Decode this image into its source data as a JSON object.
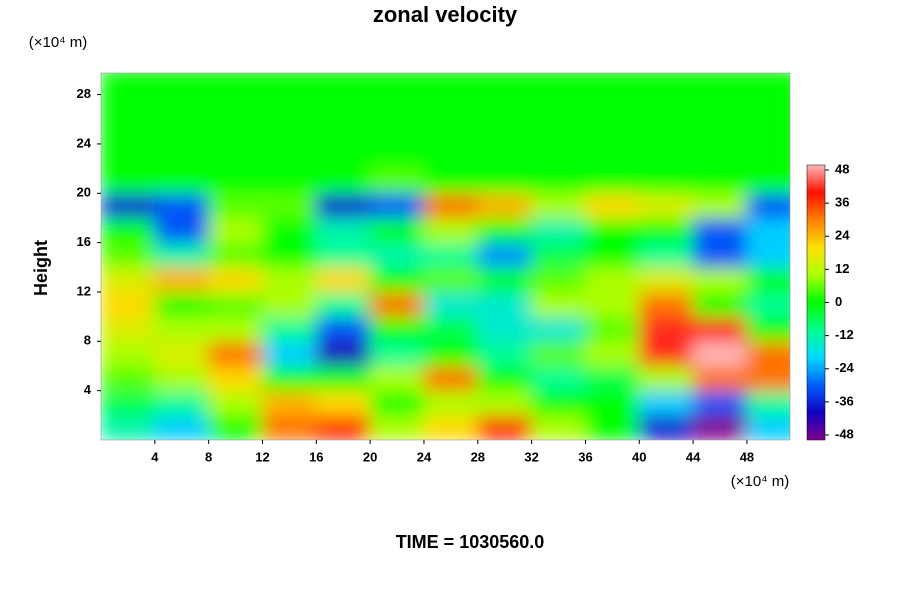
{
  "chart_data": {
    "type": "heatmap",
    "title": "zonal velocity",
    "x_unit": "(×10⁴ m)",
    "y_unit": "(×10⁴ m)",
    "ylabel": "Height",
    "footer": "TIME = 1030560.0",
    "x": [
      2,
      6,
      10,
      14,
      18,
      22,
      26,
      30,
      34,
      38,
      42,
      46,
      50
    ],
    "y": [
      1,
      3,
      5,
      7,
      9,
      11,
      13,
      15,
      17,
      19,
      21,
      23,
      25,
      27,
      29
    ],
    "z": [
      [
        -12,
        -20,
        0,
        30,
        36,
        10,
        20,
        36,
        10,
        0,
        -36,
        -48,
        -20
      ],
      [
        -5,
        -10,
        10,
        24,
        20,
        0,
        10,
        10,
        0,
        0,
        -20,
        -30,
        -10
      ],
      [
        5,
        10,
        20,
        0,
        0,
        10,
        30,
        0,
        -10,
        -5,
        10,
        30,
        30
      ],
      [
        10,
        15,
        30,
        -20,
        -40,
        -10,
        0,
        -10,
        5,
        10,
        40,
        48,
        30
      ],
      [
        15,
        10,
        10,
        -10,
        -30,
        0,
        -5,
        -15,
        -15,
        5,
        40,
        40,
        0
      ],
      [
        20,
        0,
        5,
        10,
        -10,
        30,
        -15,
        -15,
        10,
        10,
        30,
        0,
        -10
      ],
      [
        15,
        24,
        20,
        10,
        20,
        0,
        5,
        0,
        5,
        10,
        15,
        10,
        0
      ],
      [
        5,
        -12,
        5,
        0,
        -10,
        -12,
        -10,
        -25,
        -5,
        0,
        -10,
        -30,
        -20
      ],
      [
        0,
        -30,
        10,
        0,
        -12,
        0,
        10,
        0,
        -12,
        0,
        0,
        -30,
        -20
      ],
      [
        -36,
        -30,
        5,
        5,
        -36,
        -30,
        30,
        24,
        10,
        20,
        15,
        10,
        -30
      ],
      [
        0,
        0,
        0,
        0,
        0,
        5,
        0,
        0,
        0,
        0,
        0,
        0,
        0
      ],
      [
        0,
        0,
        0,
        0,
        0,
        0,
        0,
        0,
        0,
        0,
        0,
        0,
        0
      ],
      [
        0,
        0,
        0,
        0,
        0,
        0,
        0,
        0,
        0,
        0,
        0,
        0,
        0
      ],
      [
        0,
        0,
        0,
        0,
        0,
        0,
        0,
        0,
        0,
        0,
        0,
        0,
        0
      ],
      [
        0,
        0,
        0,
        0,
        0,
        0,
        0,
        0,
        0,
        0,
        0,
        0,
        0
      ]
    ],
    "xlim": [
      0,
      51.2
    ],
    "xticks": [
      4,
      8,
      12,
      16,
      20,
      24,
      28,
      32,
      36,
      40,
      44,
      48
    ],
    "ylim": [
      0,
      29.75
    ],
    "yticks": [
      4,
      8,
      12,
      16,
      20,
      24,
      28
    ],
    "colorbar": {
      "lim": [
        -48,
        48
      ],
      "ticks": [
        48,
        36,
        24,
        12,
        0,
        -12,
        -24,
        -36,
        -48
      ]
    },
    "colormap": [
      "#800090",
      "#1000c0",
      "#0060ff",
      "#00d8ff",
      "#00ff90",
      "#00ff00",
      "#a8ff00",
      "#ffe000",
      "#ff8000",
      "#ff1000",
      "#ffb8b8"
    ]
  }
}
